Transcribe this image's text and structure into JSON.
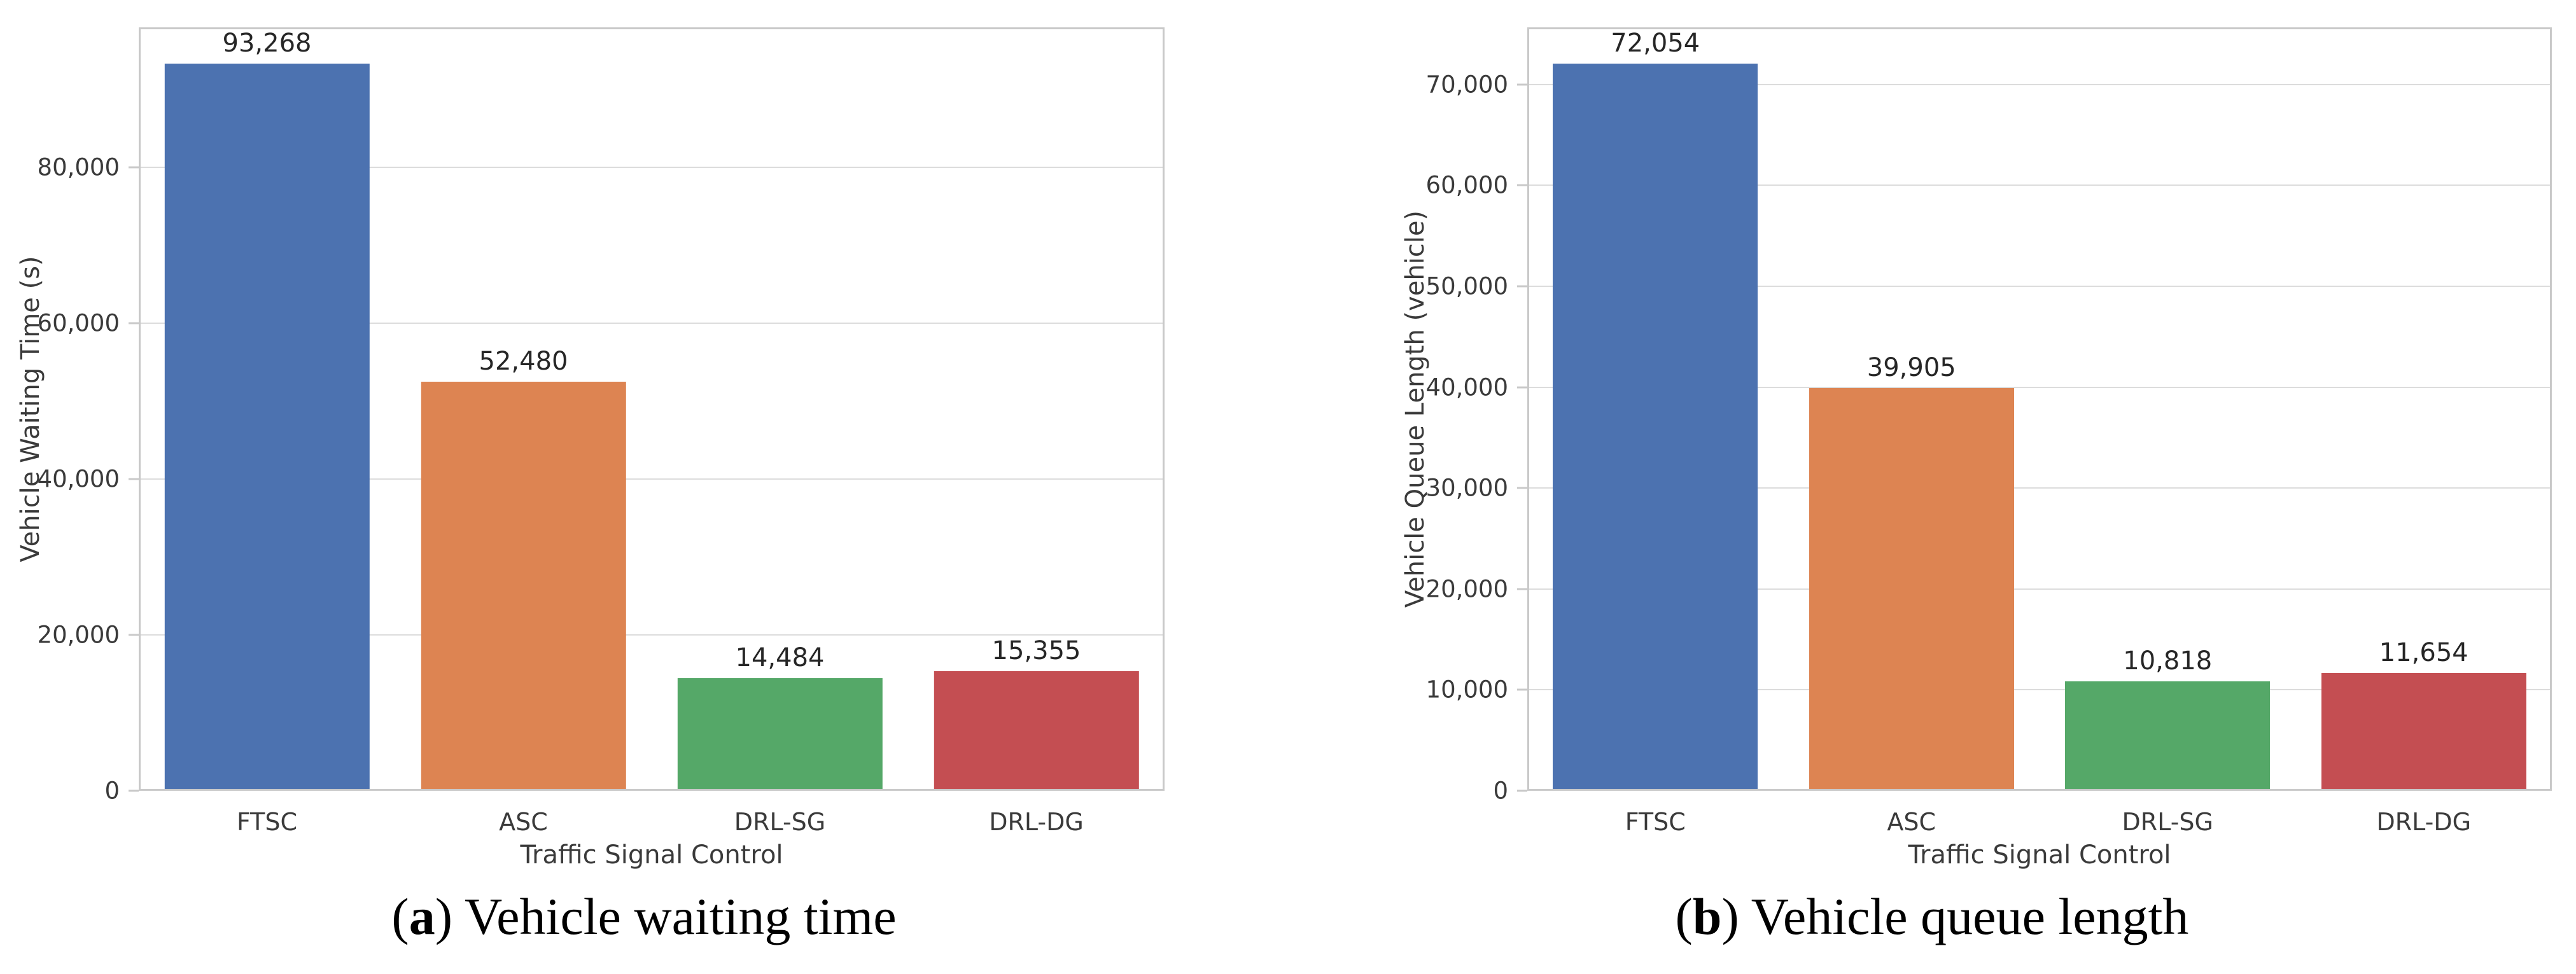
{
  "chart_data": [
    {
      "type": "bar",
      "categories": [
        "FTSC",
        "ASC",
        "DRL-SG",
        "DRL-DG"
      ],
      "values": [
        93268,
        52480,
        14484,
        15355
      ],
      "value_labels": [
        "93,268",
        "52,480",
        "14,484",
        "15,355"
      ],
      "xlabel": "Traffic Signal Control",
      "ylabel": "Vehicle Waiting Time (s)",
      "ylim": [
        0,
        97931
      ],
      "yticks": [
        0,
        20000,
        40000,
        60000,
        80000
      ],
      "ytick_labels": [
        "0",
        "20,000",
        "40,000",
        "60,000",
        "80,000"
      ],
      "bar_colors": [
        "#4C72B0",
        "#DD8452",
        "#55A868",
        "#C44E52"
      ],
      "bar_width_fraction": 0.8,
      "grid": "horizontal",
      "legend": "none",
      "caption": {
        "prefix": "(",
        "letter": "a",
        "suffix": ") ",
        "text": "Vehicle waiting time"
      }
    },
    {
      "type": "bar",
      "categories": [
        "FTSC",
        "ASC",
        "DRL-SG",
        "DRL-DG"
      ],
      "values": [
        72054,
        39905,
        10818,
        11654
      ],
      "value_labels": [
        "72,054",
        "39,905",
        "10,818",
        "11,654"
      ],
      "xlabel": "Traffic Signal Control",
      "ylabel": "Vehicle Queue Length (vehicle)",
      "ylim": [
        0,
        75657
      ],
      "yticks": [
        0,
        10000,
        20000,
        30000,
        40000,
        50000,
        60000,
        70000
      ],
      "ytick_labels": [
        "0",
        "10,000",
        "20,000",
        "30,000",
        "40,000",
        "50,000",
        "60,000",
        "70,000"
      ],
      "bar_colors": [
        "#4C72B0",
        "#DD8452",
        "#55A868",
        "#C44E52"
      ],
      "bar_width_fraction": 0.8,
      "grid": "horizontal",
      "legend": "none",
      "caption": {
        "prefix": "(",
        "letter": "b",
        "suffix": ") ",
        "text": "Vehicle queue length"
      }
    }
  ],
  "colors": {
    "bar_blue": "#4C72B0",
    "bar_orange": "#DD8452",
    "bar_green": "#55A868",
    "bar_red": "#C44E52",
    "gridline": "#dcdcdc",
    "spine": "#c9c9c9",
    "tick_text": "#3a3a3a",
    "value_text": "#262626"
  }
}
